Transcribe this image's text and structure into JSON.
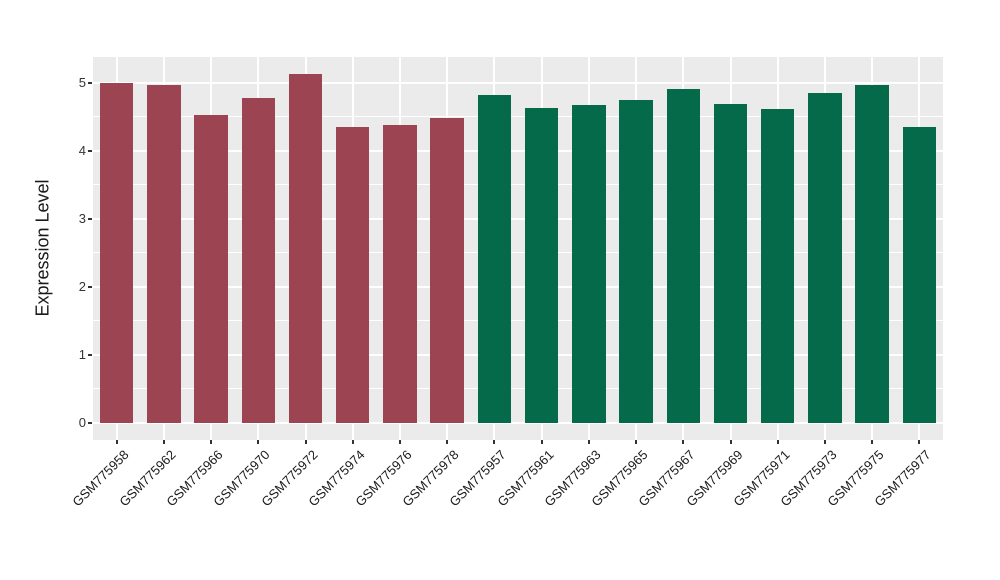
{
  "chart_data": {
    "type": "bar",
    "title": "",
    "xlabel": "",
    "ylabel": "Expression Level",
    "ylim": [
      0,
      5.4
    ],
    "yticks": [
      0,
      1,
      2,
      3,
      4,
      5
    ],
    "minor_yticks": [
      0.5,
      1.5,
      2.5,
      3.5,
      4.5
    ],
    "grid": "white major and minor horizontal lines plus vertical category lines on gray panel",
    "legend_position": "none",
    "panel_background": "#EBEBEB",
    "gridline_color": "#FFFFFF",
    "tick_label_color": "#333333",
    "categories": [
      "GSM775958",
      "GSM775962",
      "GSM775966",
      "GSM775970",
      "GSM775972",
      "GSM775974",
      "GSM775976",
      "GSM775978",
      "GSM775957",
      "GSM775961",
      "GSM775963",
      "GSM775965",
      "GSM775967",
      "GSM775969",
      "GSM775971",
      "GSM775973",
      "GSM775975",
      "GSM775977"
    ],
    "values": [
      5.0,
      4.96,
      4.52,
      4.77,
      5.12,
      4.34,
      4.37,
      4.48,
      4.82,
      4.63,
      4.67,
      4.75,
      4.9,
      4.68,
      4.61,
      4.84,
      4.97,
      4.35
    ],
    "bar_colors": [
      "#9C4451",
      "#9C4451",
      "#9C4451",
      "#9C4451",
      "#9C4451",
      "#9C4451",
      "#9C4451",
      "#9C4451",
      "#046A4A",
      "#046A4A",
      "#046A4A",
      "#046A4A",
      "#046A4A",
      "#046A4A",
      "#046A4A",
      "#046A4A",
      "#046A4A",
      "#046A4A"
    ],
    "group_color_hex": [
      "#9C4451",
      "#046A4A"
    ]
  }
}
